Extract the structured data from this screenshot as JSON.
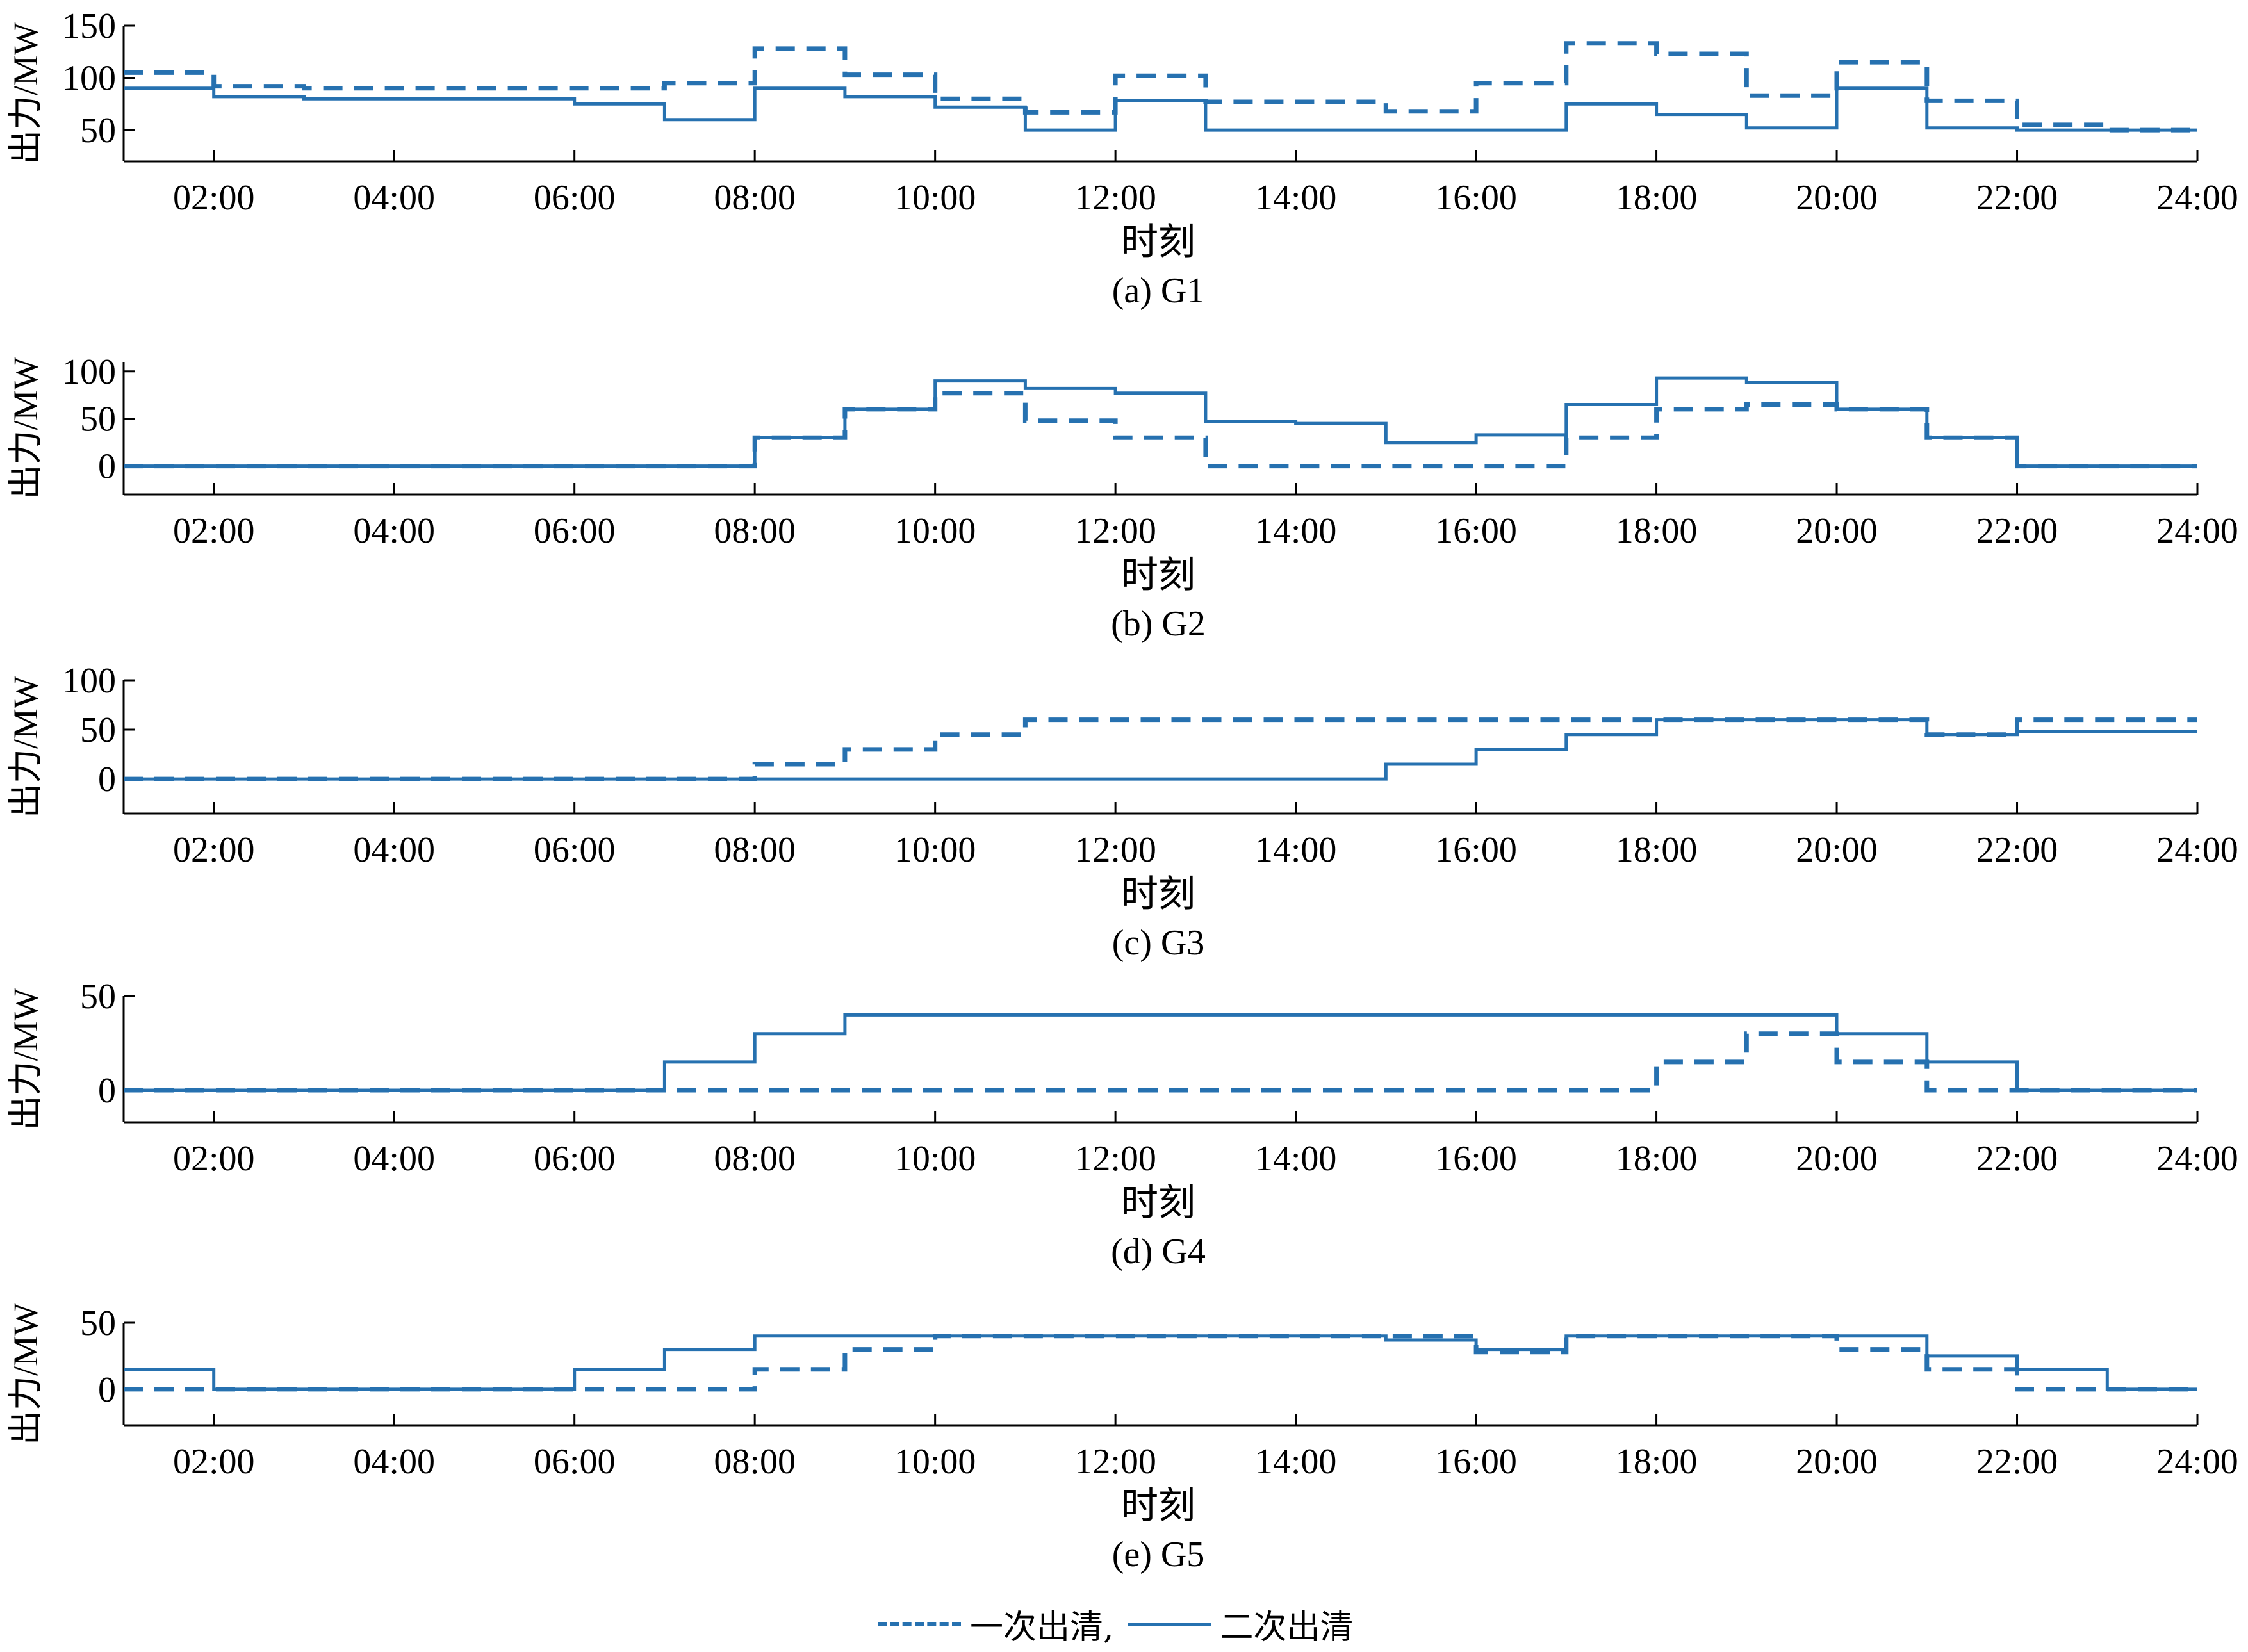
{
  "colors": {
    "series": "#2671b0",
    "axis": "#000000"
  },
  "chart_data": [
    {
      "type": "line",
      "step": true,
      "caption": "(a) G1",
      "xlabel": "时刻",
      "ylabel": "出力/MW",
      "xlim": [
        1,
        24
      ],
      "ylim": [
        20,
        150
      ],
      "yticks": [
        50,
        100,
        150
      ],
      "xtick_labels": [
        "02:00",
        "04:00",
        "06:00",
        "08:00",
        "10:00",
        "12:00",
        "14:00",
        "16:00",
        "18:00",
        "20:00",
        "22:00",
        "24:00"
      ],
      "x": [
        1,
        2,
        3,
        4,
        5,
        6,
        7,
        8,
        9,
        10,
        11,
        12,
        13,
        14,
        15,
        16,
        17,
        18,
        19,
        20,
        21,
        22,
        23
      ],
      "series": [
        {
          "name": "一次出清",
          "style": "dashed",
          "values": [
            105,
            92,
            90,
            90,
            90,
            90,
            95,
            128,
            103,
            80,
            67,
            102,
            77,
            77,
            68,
            95,
            133,
            123,
            83,
            115,
            78,
            55,
            50
          ]
        },
        {
          "name": "二次出清",
          "style": "solid",
          "values": [
            90,
            82,
            80,
            80,
            80,
            75,
            60,
            90,
            82,
            72,
            50,
            78,
            50,
            50,
            50,
            50,
            75,
            65,
            52,
            90,
            52,
            50,
            50
          ]
        }
      ]
    },
    {
      "type": "line",
      "step": true,
      "caption": "(b) G2",
      "xlabel": "时刻",
      "ylabel": "出力/MW",
      "xlim": [
        1,
        24
      ],
      "ylim": [
        -30,
        110
      ],
      "yticks": [
        0,
        50,
        100
      ],
      "xtick_labels": [
        "02:00",
        "04:00",
        "06:00",
        "08:00",
        "10:00",
        "12:00",
        "14:00",
        "16:00",
        "18:00",
        "20:00",
        "22:00",
        "24:00"
      ],
      "x": [
        1,
        2,
        3,
        4,
        5,
        6,
        7,
        8,
        9,
        10,
        11,
        12,
        13,
        14,
        15,
        16,
        17,
        18,
        19,
        20,
        21,
        22,
        23
      ],
      "series": [
        {
          "name": "一次出清",
          "style": "dashed",
          "values": [
            0,
            0,
            0,
            0,
            0,
            0,
            0,
            30,
            60,
            77,
            48,
            30,
            0,
            0,
            0,
            0,
            30,
            60,
            65,
            60,
            30,
            0,
            0
          ]
        },
        {
          "name": "二次出清",
          "style": "solid",
          "values": [
            0,
            0,
            0,
            0,
            0,
            0,
            0,
            30,
            60,
            90,
            82,
            77,
            47,
            45,
            25,
            33,
            65,
            93,
            88,
            60,
            30,
            0,
            0
          ]
        }
      ]
    },
    {
      "type": "line",
      "step": true,
      "caption": "(c) G3",
      "xlabel": "时刻",
      "ylabel": "出力/MW",
      "xlim": [
        1,
        24
      ],
      "ylim": [
        -35,
        100
      ],
      "yticks": [
        0,
        50,
        100
      ],
      "xtick_labels": [
        "02:00",
        "04:00",
        "06:00",
        "08:00",
        "10:00",
        "12:00",
        "14:00",
        "16:00",
        "18:00",
        "20:00",
        "22:00",
        "24:00"
      ],
      "x": [
        1,
        2,
        3,
        4,
        5,
        6,
        7,
        8,
        9,
        10,
        11,
        12,
        13,
        14,
        15,
        16,
        17,
        18,
        19,
        20,
        21,
        22,
        23
      ],
      "series": [
        {
          "name": "一次出清",
          "style": "dashed",
          "values": [
            0,
            0,
            0,
            0,
            0,
            0,
            0,
            15,
            30,
            45,
            60,
            60,
            60,
            60,
            60,
            60,
            60,
            60,
            60,
            60,
            45,
            60,
            60
          ]
        },
        {
          "name": "二次出清",
          "style": "solid",
          "values": [
            0,
            0,
            0,
            0,
            0,
            0,
            0,
            0,
            0,
            0,
            0,
            0,
            0,
            0,
            15,
            30,
            45,
            60,
            60,
            60,
            45,
            48,
            48
          ]
        }
      ]
    },
    {
      "type": "line",
      "step": true,
      "caption": "(d) G4",
      "xlabel": "时刻",
      "ylabel": "出力/MW",
      "xlim": [
        1,
        24
      ],
      "ylim": [
        -17,
        50
      ],
      "yticks": [
        0,
        50
      ],
      "xtick_labels": [
        "02:00",
        "04:00",
        "06:00",
        "08:00",
        "10:00",
        "12:00",
        "14:00",
        "16:00",
        "18:00",
        "20:00",
        "22:00",
        "24:00"
      ],
      "x": [
        1,
        2,
        3,
        4,
        5,
        6,
        7,
        8,
        9,
        10,
        11,
        12,
        13,
        14,
        15,
        16,
        17,
        18,
        19,
        20,
        21,
        22,
        23
      ],
      "series": [
        {
          "name": "一次出清",
          "style": "dashed",
          "values": [
            0,
            0,
            0,
            0,
            0,
            0,
            0,
            0,
            0,
            0,
            0,
            0,
            0,
            0,
            0,
            0,
            0,
            15,
            30,
            15,
            0,
            0,
            0
          ]
        },
        {
          "name": "二次出清",
          "style": "solid",
          "values": [
            0,
            0,
            0,
            0,
            0,
            0,
            15,
            30,
            40,
            40,
            40,
            40,
            40,
            40,
            40,
            40,
            40,
            40,
            40,
            30,
            15,
            0,
            0
          ]
        }
      ]
    },
    {
      "type": "line",
      "step": true,
      "caption": "(e) G5",
      "xlabel": "时刻",
      "ylabel": "出力/MW",
      "xlim": [
        1,
        24
      ],
      "ylim": [
        -27,
        50
      ],
      "yticks": [
        0,
        50
      ],
      "xtick_labels": [
        "02:00",
        "04:00",
        "06:00",
        "08:00",
        "10:00",
        "12:00",
        "14:00",
        "16:00",
        "18:00",
        "20:00",
        "22:00",
        "24:00"
      ],
      "x": [
        1,
        2,
        3,
        4,
        5,
        6,
        7,
        8,
        9,
        10,
        11,
        12,
        13,
        14,
        15,
        16,
        17,
        18,
        19,
        20,
        21,
        22,
        23
      ],
      "series": [
        {
          "name": "一次出清",
          "style": "dashed",
          "values": [
            0,
            0,
            0,
            0,
            0,
            0,
            0,
            15,
            30,
            40,
            40,
            40,
            40,
            40,
            40,
            28,
            40,
            40,
            40,
            30,
            15,
            0,
            0
          ]
        },
        {
          "name": "二次出清",
          "style": "solid",
          "values": [
            15,
            0,
            0,
            0,
            0,
            15,
            30,
            40,
            40,
            40,
            40,
            40,
            40,
            40,
            37,
            30,
            40,
            40,
            40,
            40,
            25,
            15,
            0
          ]
        }
      ]
    }
  ],
  "legend": {
    "items": [
      {
        "label": "一次出清,",
        "style": "dashed"
      },
      {
        "label": "二次出清",
        "style": "solid"
      }
    ]
  }
}
